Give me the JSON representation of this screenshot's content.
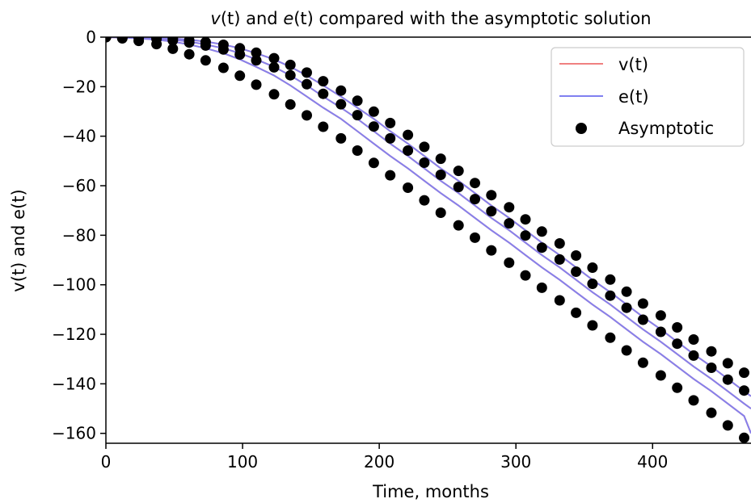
{
  "chart_data": {
    "type": "line",
    "title_parts": [
      "v",
      "(t)",
      " and ",
      "e",
      "(t)",
      " compared with the asymptotic solution"
    ],
    "xlabel": "Time, months",
    "ylabel": "v(t) and e(t)",
    "xlim": [
      0,
      472
    ],
    "ylim": [
      -164,
      0
    ],
    "xticks": [
      0,
      100,
      200,
      300,
      400
    ],
    "yticks": [
      0,
      -20,
      -40,
      -60,
      -80,
      -100,
      -120,
      -140,
      -160
    ],
    "ytick_labels": [
      "0",
      "−20",
      "−40",
      "−60",
      "−80",
      "−100",
      "−120",
      "−140",
      "−160"
    ],
    "legend": {
      "position": "top-right",
      "entries": [
        "v(t)",
        "e(t)",
        "Asymptotic"
      ]
    },
    "colors": {
      "v": "#f08080",
      "e": "#8080f0",
      "asymptotic": "#000000"
    },
    "asymptotic_x": [
      0,
      12,
      24,
      37,
      49,
      61,
      73,
      86,
      98,
      110,
      123,
      135,
      147,
      159,
      172,
      184,
      196,
      208,
      221,
      233,
      245,
      258,
      270,
      282,
      295,
      307,
      319,
      332,
      344,
      356,
      369,
      381,
      393,
      406,
      418,
      430,
      443,
      455,
      467
    ],
    "series": [
      {
        "name": "v(t)",
        "x": [
          0,
          12,
          24,
          37,
          49,
          61,
          73,
          86,
          98,
          110,
          123,
          135,
          147,
          159,
          172,
          184,
          196,
          208,
          221,
          233,
          245,
          258,
          270,
          282,
          295,
          307,
          319,
          332,
          344,
          356,
          369,
          381,
          393,
          406,
          418,
          430,
          443,
          455,
          467,
          472
        ],
        "values": [
          0,
          0,
          -0.2,
          -0.5,
          -1,
          -1.8,
          -3,
          -4.5,
          -6.5,
          -9,
          -12,
          -15.5,
          -19.5,
          -24,
          -28.5,
          -33,
          -38,
          -43,
          -48,
          -53,
          -58,
          -63,
          -68,
          -73,
          -78,
          -83,
          -88,
          -93,
          -98,
          -103,
          -108,
          -113,
          -118,
          -123,
          -128,
          -133,
          -138,
          -143,
          -148,
          -150
        ]
      },
      {
        "name": "e(t)",
        "x": [
          0,
          12,
          24,
          37,
          49,
          61,
          73,
          86,
          98,
          110,
          123,
          135,
          147,
          159,
          172,
          184,
          196,
          208,
          221,
          233,
          245,
          258,
          270,
          282,
          295,
          307,
          319,
          332,
          344,
          356,
          369,
          381,
          393,
          406,
          418,
          430,
          443,
          455,
          467,
          472
        ],
        "values": [
          0,
          0,
          -0.2,
          -0.5,
          -1,
          -1.8,
          -3,
          -4.5,
          -6.5,
          -9,
          -12,
          -15.5,
          -19.5,
          -24,
          -28.5,
          -33,
          -38,
          -43,
          -48,
          -53,
          -58,
          -63,
          -68,
          -73,
          -78,
          -83,
          -88,
          -93,
          -98,
          -103,
          -108,
          -113,
          -118,
          -123,
          -128,
          -133,
          -138,
          -143,
          -148,
          -150
        ]
      },
      {
        "name": "",
        "x": [
          0,
          12,
          24,
          37,
          49,
          61,
          73,
          86,
          98,
          110,
          123,
          135,
          147,
          159,
          172,
          184,
          196,
          208,
          221,
          233,
          245,
          258,
          270,
          282,
          295,
          307,
          319,
          332,
          344,
          356,
          369,
          381,
          393,
          406,
          418,
          430,
          443,
          455,
          467,
          472
        ],
        "values": [
          0,
          0,
          -0.1,
          -0.3,
          -0.6,
          -1,
          -1.8,
          -3,
          -4.5,
          -6.5,
          -9,
          -12,
          -15.5,
          -19.5,
          -24,
          -28.5,
          -33,
          -38,
          -43,
          -48,
          -53,
          -58,
          -63,
          -68,
          -73,
          -78,
          -83,
          -88,
          -93,
          -98,
          -103,
          -108,
          -113,
          -118,
          -123,
          -128,
          -133,
          -138,
          -143,
          -145
        ]
      },
      {
        "name": "",
        "x": [
          0,
          12,
          24,
          37,
          49,
          61,
          73,
          86,
          98,
          110,
          123,
          135,
          147,
          159,
          172,
          184,
          196,
          208,
          221,
          233,
          245,
          258,
          270,
          282,
          295,
          307,
          319,
          332,
          344,
          356,
          369,
          381,
          393,
          406,
          418,
          430,
          443,
          455,
          467,
          472
        ],
        "values": [
          0,
          0,
          -0.1,
          -0.3,
          -0.6,
          -1,
          -1.8,
          -3,
          -4.5,
          -6.5,
          -9,
          -12,
          -15.5,
          -19.5,
          -24,
          -28.5,
          -33,
          -38,
          -43,
          -48,
          -53,
          -58,
          -63,
          -68,
          -73,
          -78,
          -83,
          -88,
          -93,
          -98,
          -103,
          -108,
          -113,
          -118,
          -123,
          -128,
          -133,
          -138,
          -143,
          -145
        ]
      },
      {
        "name": "",
        "x": [
          0,
          12,
          24,
          37,
          49,
          61,
          73,
          86,
          98,
          110,
          123,
          135,
          147,
          159,
          172,
          184,
          196,
          208,
          221,
          233,
          245,
          258,
          270,
          282,
          295,
          307,
          319,
          332,
          344,
          356,
          369,
          381,
          393,
          406,
          418,
          430,
          443,
          455,
          467,
          472
        ],
        "values": [
          0,
          -0.2,
          -0.5,
          -1,
          -1.8,
          -3,
          -4.5,
          -6.5,
          -9,
          -12,
          -15.5,
          -19.5,
          -24,
          -28.5,
          -33,
          -38,
          -43,
          -48,
          -53,
          -58,
          -63,
          -68,
          -73,
          -78,
          -83,
          -88,
          -93,
          -98,
          -103,
          -108,
          -113,
          -118,
          -123,
          -128,
          -133,
          -138,
          -143,
          -148,
          -153,
          -160
        ]
      },
      {
        "name": "",
        "x": [
          0,
          12,
          24,
          37,
          49,
          61,
          73,
          86,
          98,
          110,
          123,
          135,
          147,
          159,
          172,
          184,
          196,
          208,
          221,
          233,
          245,
          258,
          270,
          282,
          295,
          307,
          319,
          332,
          344,
          356,
          369,
          381,
          393,
          406,
          418,
          430,
          443,
          455,
          467,
          472
        ],
        "values": [
          0,
          -0.2,
          -0.5,
          -1,
          -1.8,
          -3,
          -4.5,
          -6.5,
          -9,
          -12,
          -15.5,
          -19.5,
          -24,
          -28.5,
          -33,
          -38,
          -43,
          -48,
          -53,
          -58,
          -63,
          -68,
          -73,
          -78,
          -83,
          -88,
          -93,
          -98,
          -103,
          -108,
          -113,
          -118,
          -123,
          -128,
          -133,
          -138,
          -143,
          -148,
          -153,
          -160
        ]
      },
      {
        "name": "Asymptotic",
        "x": [
          0,
          12,
          24,
          37,
          49,
          61,
          73,
          86,
          98,
          110,
          123,
          135,
          147,
          159,
          172,
          184,
          196,
          208,
          221,
          233,
          245,
          258,
          270,
          282,
          295,
          307,
          319,
          332,
          344,
          356,
          369,
          381,
          393,
          406,
          418,
          430,
          443,
          455,
          467
        ],
        "values": [
          0,
          0,
          -0.1,
          -0.3,
          -0.6,
          -1.2,
          -2,
          -3.1,
          -4.5,
          -6.3,
          -8.5,
          -11.2,
          -14.3,
          -17.8,
          -21.6,
          -25.7,
          -30.1,
          -34.7,
          -39.5,
          -44.3,
          -49.1,
          -54,
          -58.9,
          -63.8,
          -68.7,
          -73.6,
          -78.5,
          -83.3,
          -88.2,
          -93.1,
          -97.9,
          -102.8,
          -107.6,
          -112.4,
          -117.2,
          -122.1,
          -126.9,
          -131.7,
          -135.5
        ]
      },
      {
        "name": "",
        "x": [
          0,
          12,
          24,
          37,
          49,
          61,
          73,
          86,
          98,
          110,
          123,
          135,
          147,
          159,
          172,
          184,
          196,
          208,
          221,
          233,
          245,
          258,
          270,
          282,
          295,
          307,
          319,
          332,
          344,
          356,
          369,
          381,
          393,
          406,
          418,
          430,
          443,
          455,
          467
        ],
        "values": [
          0,
          -0.1,
          -0.3,
          -0.7,
          -1.3,
          -2.2,
          -3.4,
          -5,
          -7,
          -9.4,
          -12.2,
          -15.4,
          -19,
          -22.9,
          -27.1,
          -31.5,
          -36.1,
          -40.9,
          -45.8,
          -50.7,
          -55.6,
          -60.5,
          -65.4,
          -70.3,
          -75.2,
          -80.1,
          -85,
          -89.8,
          -94.7,
          -99.6,
          -104.4,
          -109.3,
          -114.1,
          -119,
          -123.8,
          -128.6,
          -133.5,
          -138.3,
          -142.7
        ]
      },
      {
        "name": "",
        "x": [
          0,
          12,
          24,
          37,
          49,
          61,
          73,
          86,
          98,
          110,
          123,
          135,
          147,
          159,
          172,
          184,
          196,
          208,
          221,
          233,
          245,
          258,
          270,
          282,
          295,
          307,
          319,
          332,
          344,
          356,
          369,
          381,
          393,
          406,
          418,
          430,
          443,
          455,
          467
        ],
        "values": [
          0,
          -0.5,
          -1.5,
          -2.8,
          -4.7,
          -6.9,
          -9.4,
          -12.4,
          -15.6,
          -19.2,
          -23.1,
          -27.2,
          -31.6,
          -36.2,
          -40.9,
          -45.8,
          -50.8,
          -55.8,
          -60.8,
          -65.9,
          -70.9,
          -76,
          -81,
          -86.1,
          -91.1,
          -96.2,
          -101.2,
          -106.3,
          -111.3,
          -116.4,
          -121.4,
          -126.5,
          -131.5,
          -136.6,
          -141.6,
          -146.7,
          -151.7,
          -156.8,
          -161.8
        ]
      }
    ]
  }
}
